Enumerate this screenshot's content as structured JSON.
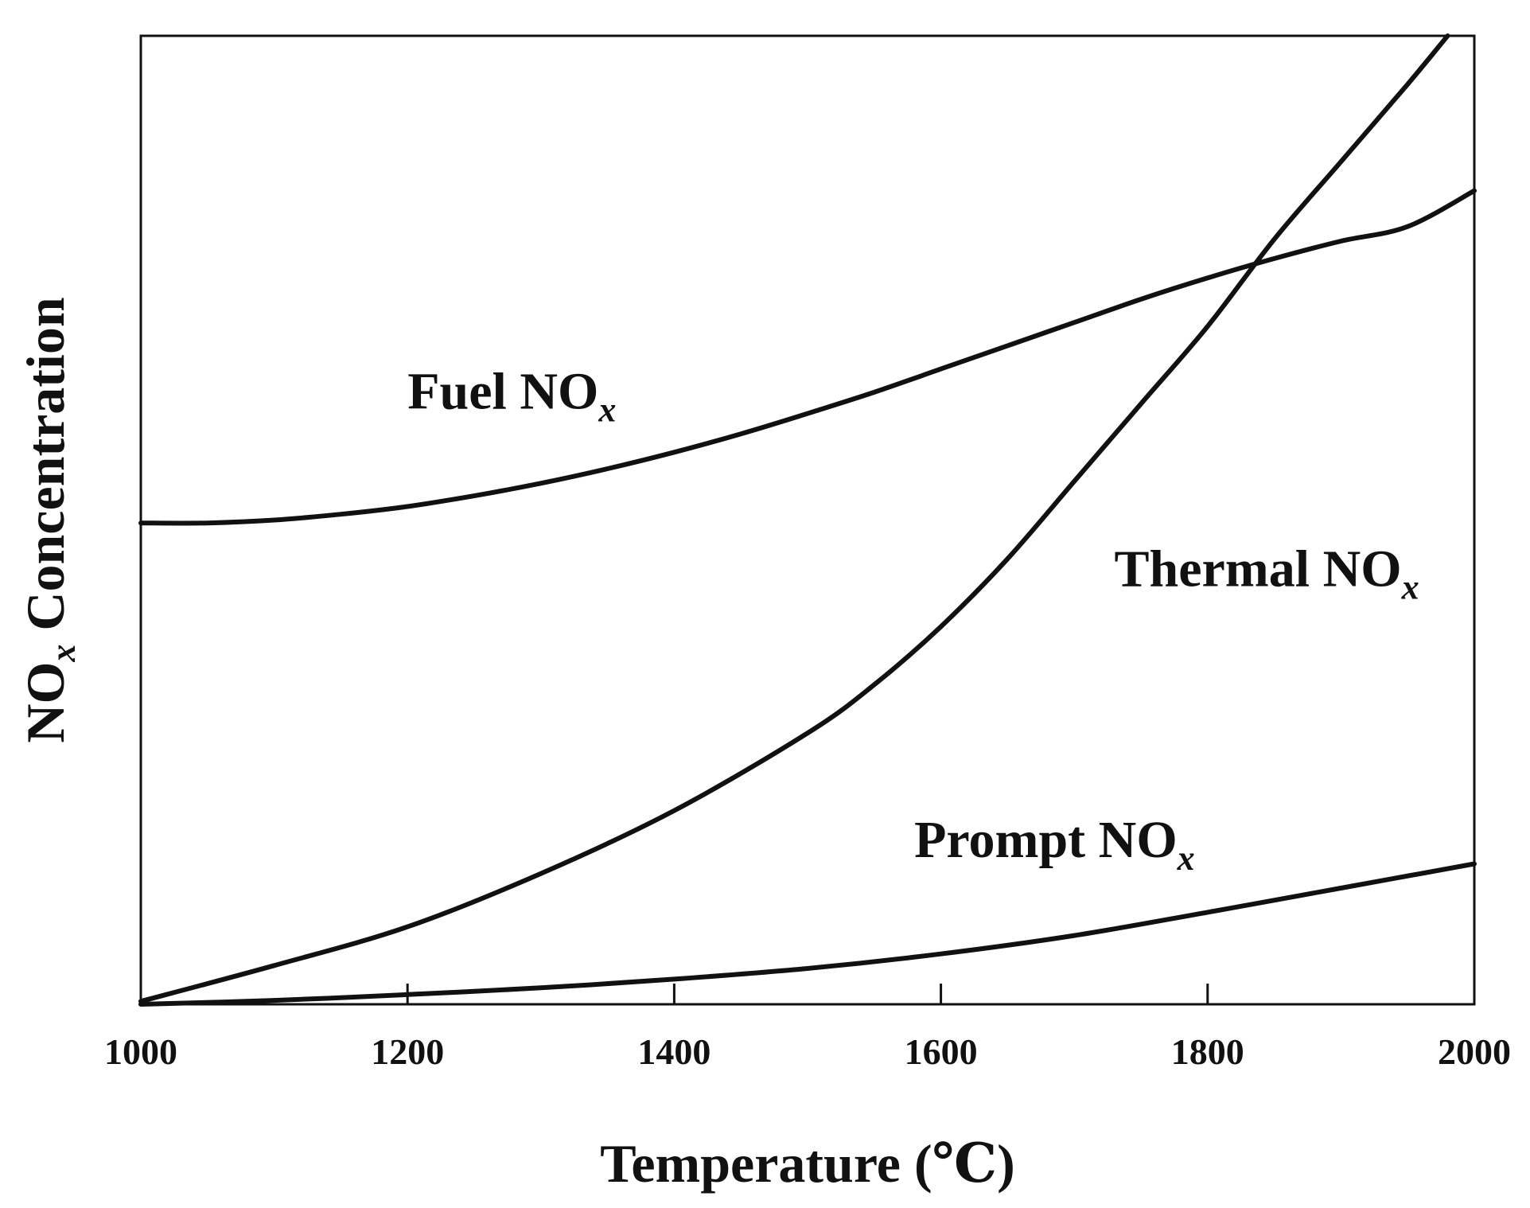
{
  "chart_data": {
    "type": "line",
    "title": "",
    "xlabel": "Temperature (℃)",
    "ylabel": "NOx Concentration",
    "ylabel_parts": {
      "main": "NO",
      "sub": "x",
      "rest": " Concentration"
    },
    "xlim": [
      1000,
      2000
    ],
    "ylim": [
      0,
      1
    ],
    "x_ticks": [
      1000,
      1200,
      1400,
      1600,
      1800,
      2000
    ],
    "x_tick_labels": [
      "1000",
      "1200",
      "1400",
      "1600",
      "1800",
      "2000"
    ],
    "y_ticks_shown": false,
    "grid": false,
    "series": [
      {
        "name": "Fuel NOx",
        "label_main": "Fuel NO",
        "label_sub": "x",
        "x": [
          1000,
          1050,
          1100,
          1150,
          1200,
          1250,
          1300,
          1350,
          1400,
          1450,
          1500,
          1550,
          1600,
          1650,
          1700,
          1750,
          1800,
          1850,
          1900,
          1950,
          2000
        ],
        "y": [
          0.497,
          0.497,
          0.5,
          0.506,
          0.514,
          0.525,
          0.538,
          0.553,
          0.57,
          0.589,
          0.61,
          0.632,
          0.656,
          0.68,
          0.704,
          0.728,
          0.75,
          0.77,
          0.788,
          0.803,
          0.84
        ]
      },
      {
        "name": "Thermal NOx",
        "label_main": "Thermal NO",
        "label_sub": "x",
        "x": [
          1000,
          1100,
          1200,
          1300,
          1400,
          1500,
          1550,
          1600,
          1650,
          1700,
          1750,
          1800,
          1850,
          1900,
          1950,
          1980
        ],
        "y": [
          0.003,
          0.04,
          0.08,
          0.135,
          0.2,
          0.28,
          0.33,
          0.39,
          0.46,
          0.54,
          0.62,
          0.7,
          0.79,
          0.87,
          0.95,
          1.0
        ]
      },
      {
        "name": "Prompt NOx",
        "label_main": "Prompt NO",
        "label_sub": "x",
        "x": [
          1000,
          1100,
          1200,
          1300,
          1400,
          1500,
          1600,
          1700,
          1800,
          1900,
          2000
        ],
        "y": [
          0.0,
          0.004,
          0.01,
          0.017,
          0.026,
          0.037,
          0.052,
          0.071,
          0.095,
          0.12,
          0.145
        ]
      }
    ],
    "annotations": [
      {
        "series": "Fuel NOx",
        "x": 1200,
        "y": 0.615
      },
      {
        "series": "Thermal NOx",
        "x": 1730,
        "y": 0.432
      },
      {
        "series": "Prompt NOx",
        "x": 1580,
        "y": 0.152
      }
    ],
    "axis_color": "#111111",
    "line_color": "#111111"
  }
}
